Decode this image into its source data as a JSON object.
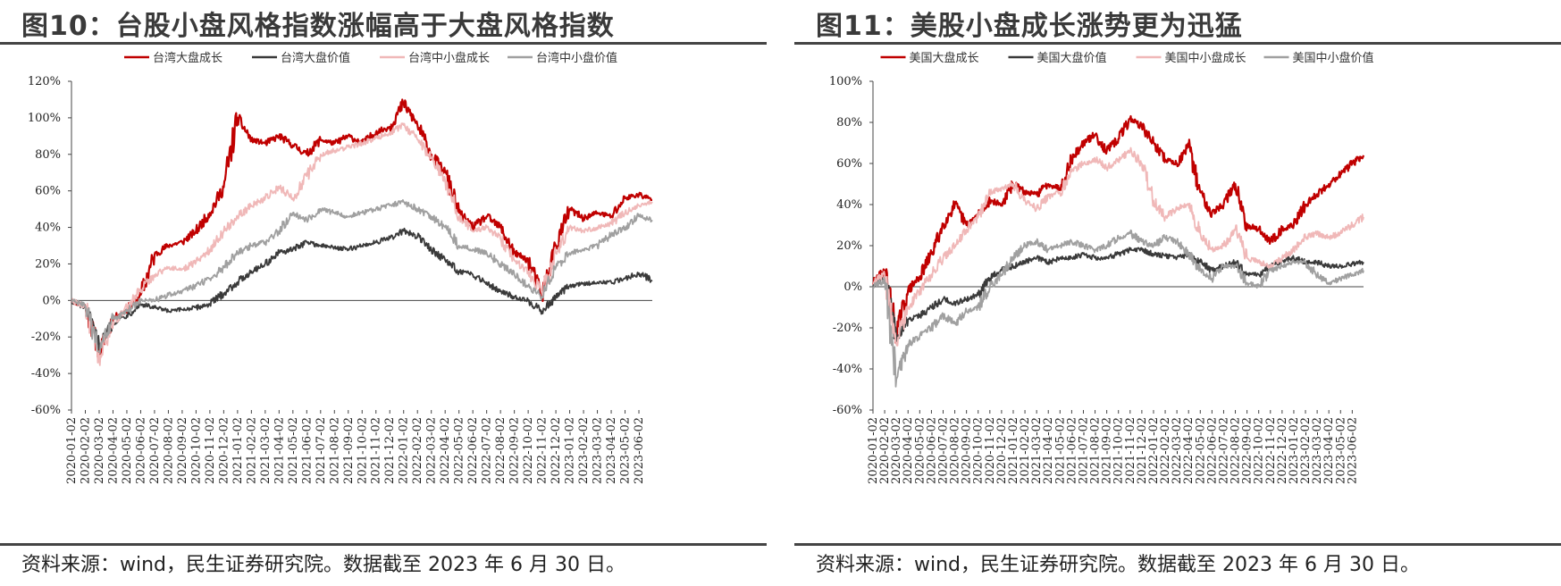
{
  "panels": [
    {
      "title": "图10：台股小盘风格指数涨幅高于大盘风格指数",
      "source": "资料来源：wind，民生证券研究院。数据截至 2023 年 6 月 30 日。"
    },
    {
      "title": "图11：美股小盘成长涨势更为迅猛",
      "source": "资料来源：wind，民生证券研究院。数据截至 2023 年 6 月 30 日。"
    }
  ],
  "chart_data": [
    {
      "type": "line",
      "legend_position": "top",
      "ylim": [
        -60,
        120
      ],
      "yticks": [
        "-60%",
        "-40%",
        "-20%",
        "0%",
        "20%",
        "40%",
        "60%",
        "80%",
        "100%",
        "120%"
      ],
      "x_tick_labels": [
        "2020-01-02",
        "2020-02-02",
        "2020-03-02",
        "2020-04-02",
        "2020-05-02",
        "2020-06-02",
        "2020-07-02",
        "2020-08-02",
        "2020-09-02",
        "2020-10-02",
        "2020-11-02",
        "2020-12-02",
        "2021-01-02",
        "2021-02-02",
        "2021-03-02",
        "2021-04-02",
        "2021-05-02",
        "2021-06-02",
        "2021-07-02",
        "2021-08-02",
        "2021-09-02",
        "2021-10-02",
        "2021-11-02",
        "2021-12-02",
        "2022-01-02",
        "2022-02-02",
        "2022-03-02",
        "2022-04-02",
        "2022-05-02",
        "2022-06-02",
        "2022-07-02",
        "2022-08-02",
        "2022-09-02",
        "2022-10-02",
        "2022-11-02",
        "2022-12-02",
        "2023-01-02",
        "2023-02-02",
        "2023-03-02",
        "2023-04-02",
        "2023-05-02",
        "2023-06-02"
      ],
      "x": [
        "2020-01",
        "2020-02",
        "2020-03",
        "2020-04",
        "2020-05",
        "2020-06",
        "2020-07",
        "2020-08",
        "2020-09",
        "2020-10",
        "2020-11",
        "2020-12",
        "2021-01",
        "2021-02",
        "2021-03",
        "2021-04",
        "2021-05",
        "2021-06",
        "2021-07",
        "2021-08",
        "2021-09",
        "2021-10",
        "2021-11",
        "2021-12",
        "2022-01",
        "2022-02",
        "2022-03",
        "2022-04",
        "2022-05",
        "2022-06",
        "2022-07",
        "2022-08",
        "2022-09",
        "2022-10",
        "2022-11",
        "2022-12",
        "2023-01",
        "2023-02",
        "2023-03",
        "2023-04",
        "2023-05",
        "2023-06",
        "2023-06-30"
      ],
      "series": [
        {
          "name": "台湾大盘成长",
          "color": "#C00000",
          "width": 2.2,
          "values": [
            0,
            -3,
            -28,
            -10,
            -5,
            3,
            25,
            30,
            32,
            38,
            48,
            62,
            100,
            88,
            86,
            90,
            85,
            80,
            88,
            86,
            90,
            86,
            92,
            95,
            108,
            96,
            80,
            70,
            48,
            40,
            46,
            40,
            26,
            22,
            3,
            30,
            50,
            45,
            48,
            46,
            56,
            58,
            55
          ]
        },
        {
          "name": "台湾大盘价值",
          "color": "#3A3A3A",
          "width": 1.8,
          "values": [
            0,
            -4,
            -25,
            -12,
            -8,
            -2,
            -4,
            -6,
            -5,
            -4,
            -2,
            4,
            10,
            16,
            20,
            26,
            28,
            32,
            30,
            29,
            28,
            30,
            32,
            34,
            38,
            35,
            28,
            22,
            16,
            14,
            10,
            5,
            2,
            0,
            -6,
            2,
            8,
            9,
            10,
            10,
            12,
            15,
            11
          ]
        },
        {
          "name": "台湾中小盘成长",
          "color": "#F0B8B8",
          "width": 1.8,
          "values": [
            0,
            -3,
            -33,
            -12,
            -4,
            6,
            14,
            18,
            17,
            21,
            28,
            38,
            46,
            52,
            56,
            62,
            56,
            68,
            80,
            82,
            84,
            86,
            89,
            92,
            96,
            88,
            78,
            66,
            46,
            38,
            40,
            34,
            22,
            16,
            4,
            26,
            40,
            38,
            40,
            42,
            48,
            52,
            54
          ]
        },
        {
          "name": "台湾中小盘价值",
          "color": "#A0A0A0",
          "width": 1.8,
          "values": [
            0,
            -3,
            -28,
            -10,
            -6,
            0,
            0,
            3,
            5,
            8,
            12,
            18,
            26,
            30,
            32,
            38,
            48,
            44,
            50,
            48,
            46,
            48,
            50,
            52,
            54,
            50,
            46,
            40,
            30,
            28,
            26,
            20,
            14,
            8,
            2,
            18,
            26,
            28,
            30,
            36,
            40,
            46,
            44
          ]
        }
      ]
    },
    {
      "type": "line",
      "legend_position": "top",
      "ylim": [
        -60,
        100
      ],
      "yticks": [
        "-60%",
        "-40%",
        "-20%",
        "0%",
        "20%",
        "40%",
        "60%",
        "80%",
        "100%"
      ],
      "x_tick_labels": [
        "2020-01-02",
        "2020-02-02",
        "2020-03-02",
        "2020-04-02",
        "2020-05-02",
        "2020-06-02",
        "2020-07-02",
        "2020-08-02",
        "2020-09-02",
        "2020-10-02",
        "2020-11-02",
        "2020-12-02",
        "2021-01-02",
        "2021-02-02",
        "2021-03-02",
        "2021-04-02",
        "2021-05-02",
        "2021-06-02",
        "2021-07-02",
        "2021-08-02",
        "2021-09-02",
        "2021-10-02",
        "2021-11-02",
        "2021-12-02",
        "2022-01-02",
        "2022-02-02",
        "2022-03-02",
        "2022-04-02",
        "2022-05-02",
        "2022-06-02",
        "2022-07-02",
        "2022-08-02",
        "2022-09-02",
        "2022-10-02",
        "2022-11-02",
        "2022-12-02",
        "2023-01-02",
        "2023-02-02",
        "2023-03-02",
        "2023-04-02",
        "2023-05-02",
        "2023-06-02"
      ],
      "x": [
        "2020-01",
        "2020-02",
        "2020-03",
        "2020-04",
        "2020-05",
        "2020-06",
        "2020-07",
        "2020-08",
        "2020-09",
        "2020-10",
        "2020-11",
        "2020-12",
        "2021-01",
        "2021-02",
        "2021-03",
        "2021-04",
        "2021-05",
        "2021-06",
        "2021-07",
        "2021-08",
        "2021-09",
        "2021-10",
        "2021-11",
        "2021-12",
        "2022-01",
        "2022-02",
        "2022-03",
        "2022-04",
        "2022-05",
        "2022-06",
        "2022-07",
        "2022-08",
        "2022-09",
        "2022-10",
        "2022-11",
        "2022-12",
        "2023-01",
        "2023-02",
        "2023-03",
        "2023-04",
        "2023-05",
        "2023-06",
        "2023-06-30"
      ],
      "series": [
        {
          "name": "美国大盘成长",
          "color": "#C00000",
          "width": 2.2,
          "values": [
            2,
            8,
            -22,
            -2,
            5,
            16,
            30,
            40,
            30,
            35,
            42,
            40,
            50,
            46,
            45,
            50,
            48,
            62,
            70,
            74,
            66,
            72,
            82,
            78,
            70,
            62,
            60,
            68,
            46,
            36,
            40,
            50,
            30,
            28,
            22,
            28,
            30,
            40,
            45,
            50,
            55,
            60,
            64
          ]
        },
        {
          "name": "美国大盘价值",
          "color": "#3A3A3A",
          "width": 1.8,
          "values": [
            1,
            5,
            -25,
            -16,
            -14,
            -10,
            -6,
            -8,
            -6,
            -4,
            4,
            8,
            10,
            12,
            14,
            12,
            14,
            14,
            16,
            14,
            14,
            16,
            18,
            18,
            16,
            15,
            14,
            16,
            12,
            8,
            10,
            12,
            6,
            6,
            10,
            13,
            14,
            12,
            12,
            10,
            10,
            11,
            12
          ]
        },
        {
          "name": "美国中小盘成长",
          "color": "#F0B8B8",
          "width": 1.8,
          "values": [
            2,
            6,
            -28,
            -10,
            -2,
            6,
            14,
            20,
            28,
            34,
            46,
            48,
            50,
            42,
            38,
            44,
            46,
            56,
            60,
            62,
            58,
            62,
            66,
            60,
            42,
            34,
            38,
            40,
            26,
            18,
            20,
            28,
            14,
            12,
            10,
            14,
            18,
            24,
            26,
            24,
            26,
            30,
            34
          ]
        },
        {
          "name": "美国中小盘价值",
          "color": "#A0A0A0",
          "width": 1.8,
          "values": [
            0,
            3,
            -45,
            -28,
            -24,
            -20,
            -14,
            -18,
            -12,
            -10,
            0,
            6,
            14,
            20,
            22,
            18,
            20,
            22,
            20,
            18,
            20,
            24,
            26,
            22,
            20,
            24,
            22,
            16,
            8,
            4,
            10,
            10,
            2,
            0,
            8,
            10,
            12,
            12,
            6,
            2,
            4,
            6,
            8
          ]
        }
      ]
    }
  ]
}
